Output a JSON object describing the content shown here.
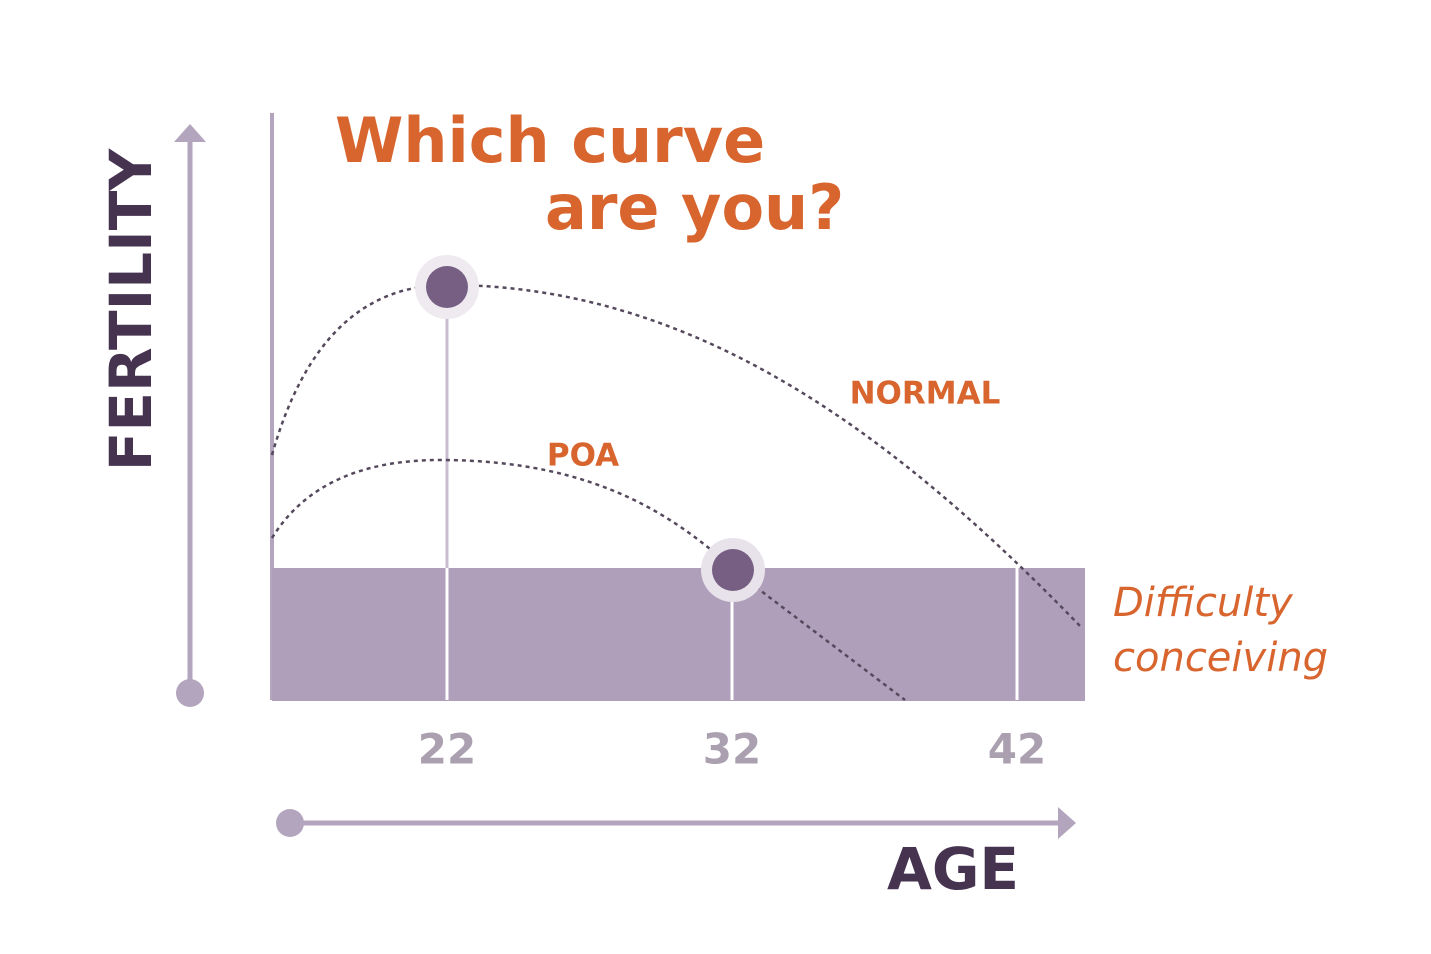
{
  "title": [
    "Which curve",
    "are you?"
  ],
  "y_axis_label": "FERTILITY",
  "x_axis_label": "AGE",
  "x_ticks": [
    22,
    32,
    42
  ],
  "curves": [
    {
      "label": "NORMAL"
    },
    {
      "label": "POA"
    }
  ],
  "zone_label": [
    "Difficulty",
    "conceiving"
  ]
}
